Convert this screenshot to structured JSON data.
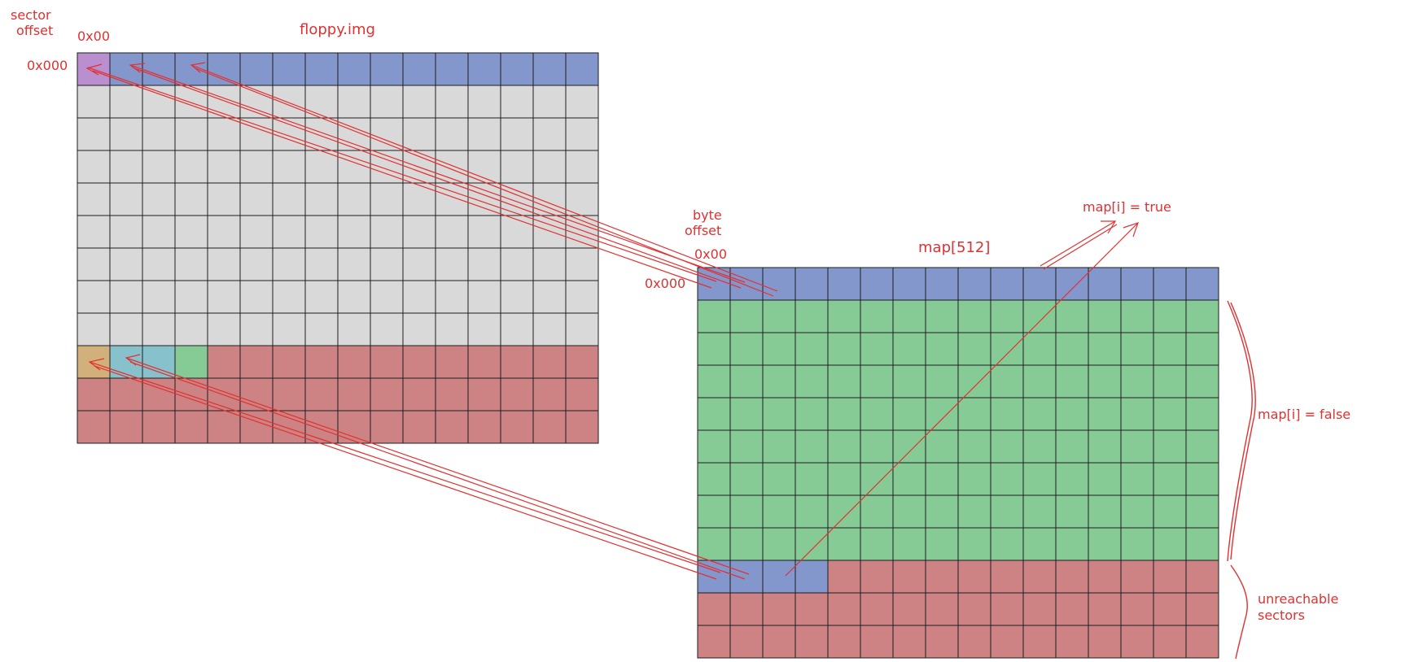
{
  "labels": {
    "sector_offset_line1": "sector",
    "sector_offset_line2": "offset",
    "col_hex_left": "0x00",
    "row_hex_left": "0x000",
    "floppy_title": "floppy.img",
    "byte_offset_line1": "byte",
    "byte_offset_line2": "offset",
    "col_hex_right": "0x00",
    "row_hex_right": "0x000",
    "map_title": "map[512]",
    "map_true": "map[i] = true",
    "map_false": "map[i] = false",
    "unreachable_line1": "unreachable",
    "unreachable_line2": "sectors"
  },
  "colors": {
    "accent": "#e03131",
    "blue": "#8497cc",
    "grey": "#d9d9d9",
    "green": "#86cb95",
    "red": "#cd8383",
    "purple": "#b98fcf",
    "tan": "#d2b07c",
    "cyan": "#87c1cc",
    "grid_line": "#1e1e1e"
  },
  "grids": {
    "floppy": {
      "columns": 16,
      "rows": [
        [
          "purple",
          "blue",
          "blue",
          "blue",
          "blue",
          "blue",
          "blue",
          "blue",
          "blue",
          "blue",
          "blue",
          "blue",
          "blue",
          "blue",
          "blue",
          "blue"
        ],
        [
          "grey",
          "grey",
          "grey",
          "grey",
          "grey",
          "grey",
          "grey",
          "grey",
          "grey",
          "grey",
          "grey",
          "grey",
          "grey",
          "grey",
          "grey",
          "grey"
        ],
        [
          "grey",
          "grey",
          "grey",
          "grey",
          "grey",
          "grey",
          "grey",
          "grey",
          "grey",
          "grey",
          "grey",
          "grey",
          "grey",
          "grey",
          "grey",
          "grey"
        ],
        [
          "grey",
          "grey",
          "grey",
          "grey",
          "grey",
          "grey",
          "grey",
          "grey",
          "grey",
          "grey",
          "grey",
          "grey",
          "grey",
          "grey",
          "grey",
          "grey"
        ],
        [
          "grey",
          "grey",
          "grey",
          "grey",
          "grey",
          "grey",
          "grey",
          "grey",
          "grey",
          "grey",
          "grey",
          "grey",
          "grey",
          "grey",
          "grey",
          "grey"
        ],
        [
          "grey",
          "grey",
          "grey",
          "grey",
          "grey",
          "grey",
          "grey",
          "grey",
          "grey",
          "grey",
          "grey",
          "grey",
          "grey",
          "grey",
          "grey",
          "grey"
        ],
        [
          "grey",
          "grey",
          "grey",
          "grey",
          "grey",
          "grey",
          "grey",
          "grey",
          "grey",
          "grey",
          "grey",
          "grey",
          "grey",
          "grey",
          "grey",
          "grey"
        ],
        [
          "grey",
          "grey",
          "grey",
          "grey",
          "grey",
          "grey",
          "grey",
          "grey",
          "grey",
          "grey",
          "grey",
          "grey",
          "grey",
          "grey",
          "grey",
          "grey"
        ],
        [
          "grey",
          "grey",
          "grey",
          "grey",
          "grey",
          "grey",
          "grey",
          "grey",
          "grey",
          "grey",
          "grey",
          "grey",
          "grey",
          "grey",
          "grey",
          "grey"
        ],
        [
          "tan",
          "cyan",
          "cyan",
          "green",
          "red",
          "red",
          "red",
          "red",
          "red",
          "red",
          "red",
          "red",
          "red",
          "red",
          "red",
          "red"
        ],
        [
          "red",
          "red",
          "red",
          "red",
          "red",
          "red",
          "red",
          "red",
          "red",
          "red",
          "red",
          "red",
          "red",
          "red",
          "red",
          "red"
        ],
        [
          "red",
          "red",
          "red",
          "red",
          "red",
          "red",
          "red",
          "red",
          "red",
          "red",
          "red",
          "red",
          "red",
          "red",
          "red",
          "red"
        ]
      ]
    },
    "map": {
      "columns": 16,
      "rows": [
        [
          "blue",
          "blue",
          "blue",
          "blue",
          "blue",
          "blue",
          "blue",
          "blue",
          "blue",
          "blue",
          "blue",
          "blue",
          "blue",
          "blue",
          "blue",
          "blue"
        ],
        [
          "green",
          "green",
          "green",
          "green",
          "green",
          "green",
          "green",
          "green",
          "green",
          "green",
          "green",
          "green",
          "green",
          "green",
          "green",
          "green"
        ],
        [
          "green",
          "green",
          "green",
          "green",
          "green",
          "green",
          "green",
          "green",
          "green",
          "green",
          "green",
          "green",
          "green",
          "green",
          "green",
          "green"
        ],
        [
          "green",
          "green",
          "green",
          "green",
          "green",
          "green",
          "green",
          "green",
          "green",
          "green",
          "green",
          "green",
          "green",
          "green",
          "green",
          "green"
        ],
        [
          "green",
          "green",
          "green",
          "green",
          "green",
          "green",
          "green",
          "green",
          "green",
          "green",
          "green",
          "green",
          "green",
          "green",
          "green",
          "green"
        ],
        [
          "green",
          "green",
          "green",
          "green",
          "green",
          "green",
          "green",
          "green",
          "green",
          "green",
          "green",
          "green",
          "green",
          "green",
          "green",
          "green"
        ],
        [
          "green",
          "green",
          "green",
          "green",
          "green",
          "green",
          "green",
          "green",
          "green",
          "green",
          "green",
          "green",
          "green",
          "green",
          "green",
          "green"
        ],
        [
          "green",
          "green",
          "green",
          "green",
          "green",
          "green",
          "green",
          "green",
          "green",
          "green",
          "green",
          "green",
          "green",
          "green",
          "green",
          "green"
        ],
        [
          "green",
          "green",
          "green",
          "green",
          "green",
          "green",
          "green",
          "green",
          "green",
          "green",
          "green",
          "green",
          "green",
          "green",
          "green",
          "green"
        ],
        [
          "blue",
          "blue",
          "blue",
          "blue",
          "red",
          "red",
          "red",
          "red",
          "red",
          "red",
          "red",
          "red",
          "red",
          "red",
          "red",
          "red"
        ],
        [
          "red",
          "red",
          "red",
          "red",
          "red",
          "red",
          "red",
          "red",
          "red",
          "red",
          "red",
          "red",
          "red",
          "red",
          "red",
          "red"
        ],
        [
          "red",
          "red",
          "red",
          "red",
          "red",
          "red",
          "red",
          "red",
          "red",
          "red",
          "red",
          "red",
          "red",
          "red",
          "red",
          "red"
        ]
      ]
    }
  }
}
